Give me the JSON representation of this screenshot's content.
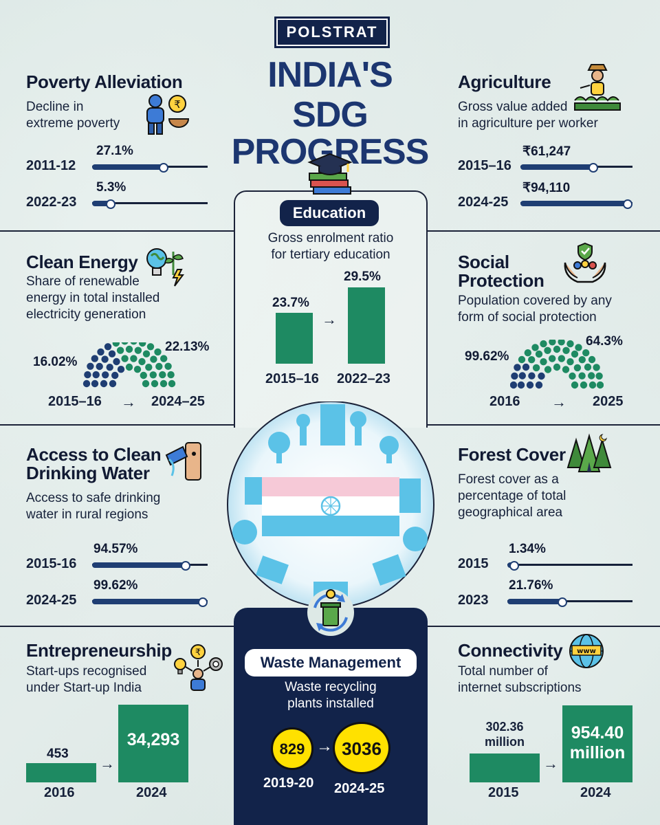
{
  "brand": "POLSTRAT",
  "title_line1": "INDIA'S",
  "title_line2": "SDG PROGRESS",
  "poverty": {
    "title": "Poverty Alleviation",
    "desc1": "Decline in",
    "desc2": "extreme poverty",
    "rows": [
      {
        "year": "2011-12",
        "value": "27.1%",
        "level": 0.62
      },
      {
        "year": "2022-23",
        "value": "5.3%",
        "level": 0.16
      }
    ]
  },
  "agriculture": {
    "title": "Agriculture",
    "desc1": "Gross value added",
    "desc2": "in agriculture per worker",
    "rows": [
      {
        "year": "2015–16",
        "value": "₹61,247",
        "level": 0.65
      },
      {
        "year": "2024-25",
        "value": "₹94,110",
        "level": 0.96
      }
    ]
  },
  "education": {
    "title": "Education",
    "desc1": "Gross enrolment ratio",
    "desc2": "for tertiary education",
    "bars": [
      {
        "year": "2015–16",
        "value": "23.7%"
      },
      {
        "year": "2022–23",
        "value": "29.5%"
      }
    ],
    "arrow": "→"
  },
  "clean_energy": {
    "title": "Clean Energy",
    "desc1": "Share of renewable",
    "desc2": "energy in total installed",
    "desc3": "electricity generation",
    "start_value": "16.02%",
    "end_value": "22.13%",
    "start_year": "2015–16",
    "end_year": "2024–25",
    "arrow": "→"
  },
  "social": {
    "title1": "Social",
    "title2": "Protection",
    "desc1": "Population covered by any",
    "desc2": "form of social protection",
    "start_value": "99.62%",
    "end_value": "64.3%",
    "start_year": "2016",
    "end_year": "2025",
    "arrow": "→"
  },
  "water": {
    "title1": "Access to Clean",
    "title2": "Drinking Water",
    "desc1": "Access to safe drinking",
    "desc2": "water in rural regions",
    "rows": [
      {
        "year": "2015-16",
        "value": "94.57%",
        "level": 0.81
      },
      {
        "year": "2024-25",
        "value": "99.62%",
        "level": 0.96
      }
    ]
  },
  "forest": {
    "title": "Forest Cover",
    "desc1": "Forest cover as a",
    "desc2": "percentage of total",
    "desc3": "geographical area",
    "rows": [
      {
        "year": "2015",
        "value": "1.34%",
        "level": 0.04
      },
      {
        "year": "2023",
        "value": "21.76%",
        "level": 0.44
      }
    ]
  },
  "entrepreneurship": {
    "title": "Entrepreneurship",
    "desc1": "Start-ups recognised",
    "desc2": "under Start-up India",
    "bars": [
      {
        "year": "2016",
        "value": "453"
      },
      {
        "year": "2024",
        "value": "34,293"
      }
    ],
    "arrow": "→"
  },
  "waste": {
    "title": "Waste Management",
    "desc1": "Waste recycling",
    "desc2": "plants installed",
    "start_value": "829",
    "end_value": "3036",
    "start_year": "2019-20",
    "end_year": "2024-25",
    "arrow": "→"
  },
  "connectivity": {
    "title": "Connectivity",
    "desc1": "Total number of",
    "desc2": "internet subscriptions",
    "bars": [
      {
        "year": "2015",
        "value1": "302.36",
        "value2": "million"
      },
      {
        "year": "2024",
        "value1": "954.40",
        "value2": "million"
      }
    ],
    "arrow": "→",
    "globe_label": "www"
  },
  "colors": {
    "navy": "#12234a",
    "green": "#1e8a62",
    "yellow": "#ffe100",
    "bar": "#1f3e73",
    "sky": "#5bc2e7"
  }
}
